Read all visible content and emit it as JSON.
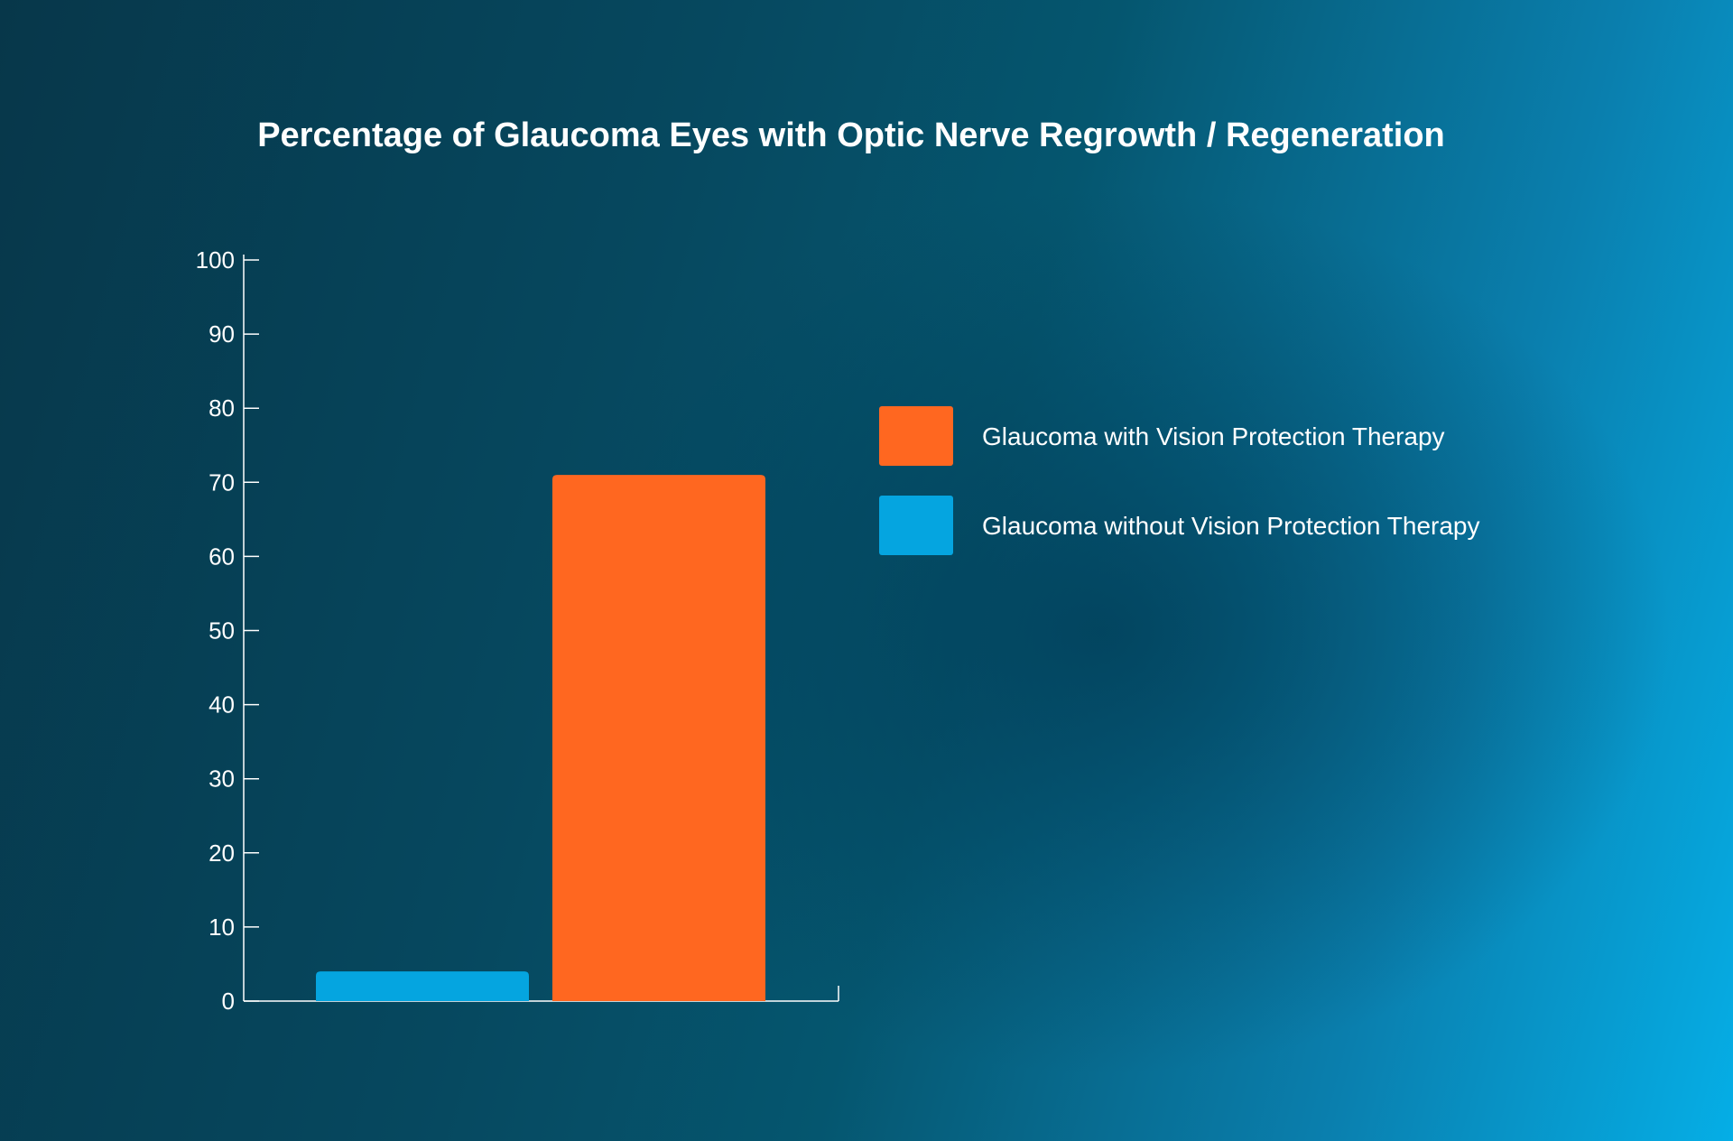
{
  "chart_data": {
    "type": "bar",
    "title": "Percentage of Glaucoma Eyes with Optic Nerve Regrowth / Regeneration",
    "xlabel": "",
    "ylabel": "",
    "ylim": [
      0,
      100
    ],
    "yticks": [
      0,
      10,
      20,
      30,
      40,
      50,
      60,
      70,
      80,
      90,
      100
    ],
    "grid": false,
    "legend_position": "right",
    "series": [
      {
        "name": "Glaucoma without Vision Protection Therapy",
        "values": [
          4
        ],
        "color": "#05a5e0"
      },
      {
        "name": "Glaucoma with Vision Protection Therapy",
        "values": [
          71
        ],
        "color": "#ff6720"
      }
    ],
    "legend_order": [
      1,
      0
    ]
  }
}
